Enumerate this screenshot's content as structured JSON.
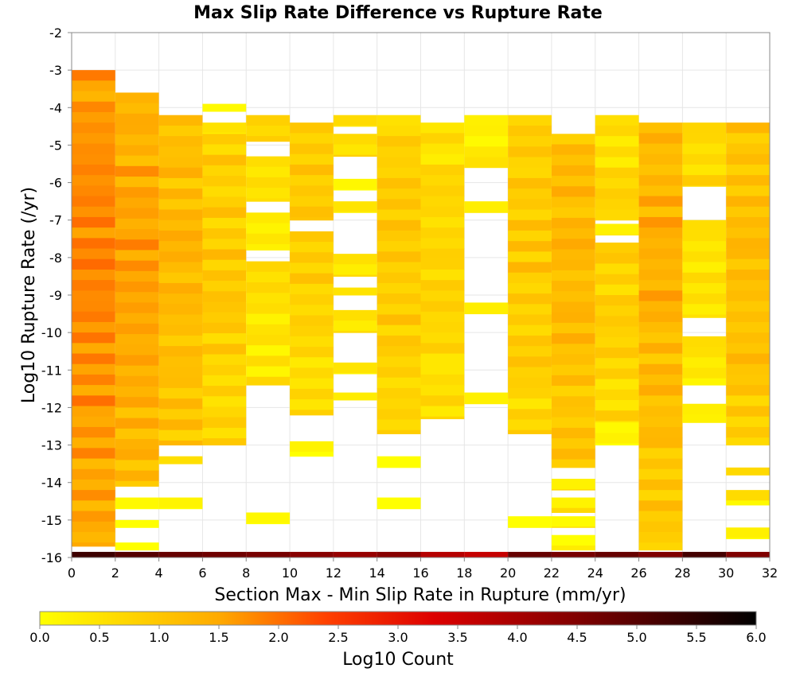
{
  "chart_data": {
    "type": "heatmap",
    "title": "Max Slip Rate Difference vs Rupture Rate",
    "xlabel": "Section Max - Min Slip Rate in Rupture (mm/yr)",
    "ylabel": "Log10 Rupture Rate (/yr)",
    "xlim": [
      0,
      32
    ],
    "ylim": [
      -16,
      -2
    ],
    "x_ticks": [
      "0",
      "2",
      "4",
      "6",
      "8",
      "10",
      "12",
      "14",
      "16",
      "18",
      "20",
      "22",
      "24",
      "26",
      "28",
      "30",
      "32"
    ],
    "y_ticks": [
      "-2",
      "-3",
      "-4",
      "-5",
      "-6",
      "-7",
      "-8",
      "-9",
      "-10",
      "-11",
      "-12",
      "-13",
      "-14",
      "-15",
      "-16"
    ],
    "bin_width_x": 2,
    "bin_height_y": 0.28,
    "grid": true,
    "colorbar": {
      "label": "Log10 Count",
      "range": [
        0,
        6
      ],
      "ticks": [
        "0.0",
        "0.5",
        "1.0",
        "1.5",
        "2.0",
        "2.5",
        "3.0",
        "3.5",
        "4.0",
        "4.5",
        "5.0",
        "5.5",
        "6.0"
      ],
      "colors": [
        "#ffff00",
        "#ffaa00",
        "#ff4000",
        "#cc0000",
        "#000000"
      ]
    },
    "bottom_row_log10_count": [
      5.3,
      5.0,
      4.8,
      4.7,
      4.6,
      4.4,
      4.2,
      4.4,
      3.8,
      3.6,
      4.8,
      4.6,
      4.8,
      4.5,
      5.2,
      4.5
    ],
    "columns": [
      {
        "x": 1,
        "cells": [
          [
            -3.0,
            -15.7,
            1.9
          ]
        ]
      },
      {
        "x": 3,
        "cells": [
          [
            -3.6,
            -14.1,
            1.6
          ],
          [
            -14.4,
            -14.7,
            0.5
          ],
          [
            -15.0,
            -15.2,
            0.3
          ],
          [
            -15.6,
            -15.8,
            0.2
          ]
        ]
      },
      {
        "x": 5,
        "cells": [
          [
            -4.2,
            -13.0,
            1.3
          ],
          [
            -13.3,
            -13.5,
            0.7
          ],
          [
            -14.4,
            -14.7,
            0.4
          ]
        ]
      },
      {
        "x": 7,
        "cells": [
          [
            -3.9,
            -4.1,
            0.2
          ],
          [
            -4.4,
            -4.7,
            0.6
          ],
          [
            -4.7,
            -13.0,
            1.0
          ]
        ]
      },
      {
        "x": 9,
        "cells": [
          [
            -4.2,
            -4.9,
            0.9
          ],
          [
            -5.3,
            -6.5,
            0.6
          ],
          [
            -6.8,
            -7.8,
            0.3
          ],
          [
            -8.1,
            -11.4,
            0.6
          ],
          [
            -14.8,
            -15.1,
            0.4
          ]
        ]
      },
      {
        "x": 11,
        "cells": [
          [
            -4.4,
            -7.0,
            1.0
          ],
          [
            -7.3,
            -12.2,
            0.8
          ],
          [
            -12.9,
            -13.3,
            0.3
          ]
        ]
      },
      {
        "x": 13,
        "cells": [
          [
            -4.2,
            -4.5,
            0.8
          ],
          [
            -4.7,
            -5.3,
            0.8
          ],
          [
            -5.9,
            -6.2,
            0.2
          ],
          [
            -6.5,
            -6.8,
            0.5
          ],
          [
            -7.9,
            -8.5,
            0.5
          ],
          [
            -8.8,
            -9.0,
            0.5
          ],
          [
            -9.4,
            -10.0,
            0.6
          ],
          [
            -10.8,
            -11.1,
            0.6
          ],
          [
            -11.6,
            -11.8,
            0.5
          ]
        ]
      },
      {
        "x": 15,
        "cells": [
          [
            -4.2,
            -12.7,
            1.0
          ],
          [
            -13.3,
            -13.6,
            0.4
          ],
          [
            -14.4,
            -14.7,
            0.5
          ]
        ]
      },
      {
        "x": 17,
        "cells": [
          [
            -4.4,
            -12.3,
            0.8
          ]
        ]
      },
      {
        "x": 19,
        "cells": [
          [
            -4.2,
            -5.6,
            0.5
          ],
          [
            -6.5,
            -6.8,
            0.4
          ],
          [
            -9.2,
            -9.5,
            0.4
          ],
          [
            -11.6,
            -11.9,
            0.5
          ]
        ]
      },
      {
        "x": 21,
        "cells": [
          [
            -4.2,
            -12.7,
            1.0
          ],
          [
            -14.9,
            -15.2,
            0.3
          ]
        ]
      },
      {
        "x": 23,
        "cells": [
          [
            -4.7,
            -13.6,
            1.3
          ],
          [
            -13.9,
            -14.2,
            0.9
          ],
          [
            -14.4,
            -14.8,
            0.9
          ],
          [
            -14.9,
            -15.2,
            0.8
          ],
          [
            -15.4,
            -15.8,
            0.6
          ]
        ]
      },
      {
        "x": 25,
        "cells": [
          [
            -4.2,
            -7.0,
            0.8
          ],
          [
            -7.1,
            -7.4,
            0.3
          ],
          [
            -7.6,
            -12.4,
            0.9
          ],
          [
            -12.4,
            -13.0,
            0.4
          ]
        ]
      },
      {
        "x": 27,
        "cells": [
          [
            -4.4,
            -15.8,
            1.4
          ]
        ]
      },
      {
        "x": 29,
        "cells": [
          [
            -4.4,
            -6.1,
            0.8
          ],
          [
            -7.0,
            -9.6,
            0.5
          ],
          [
            -10.1,
            -11.4,
            0.6
          ],
          [
            -11.9,
            -12.4,
            0.4
          ]
        ]
      },
      {
        "x": 31,
        "cells": [
          [
            -4.4,
            -13.0,
            1.2
          ],
          [
            -13.6,
            -13.8,
            0.7
          ],
          [
            -14.2,
            -14.6,
            0.7
          ],
          [
            -15.2,
            -15.5,
            0.4
          ]
        ]
      }
    ]
  }
}
